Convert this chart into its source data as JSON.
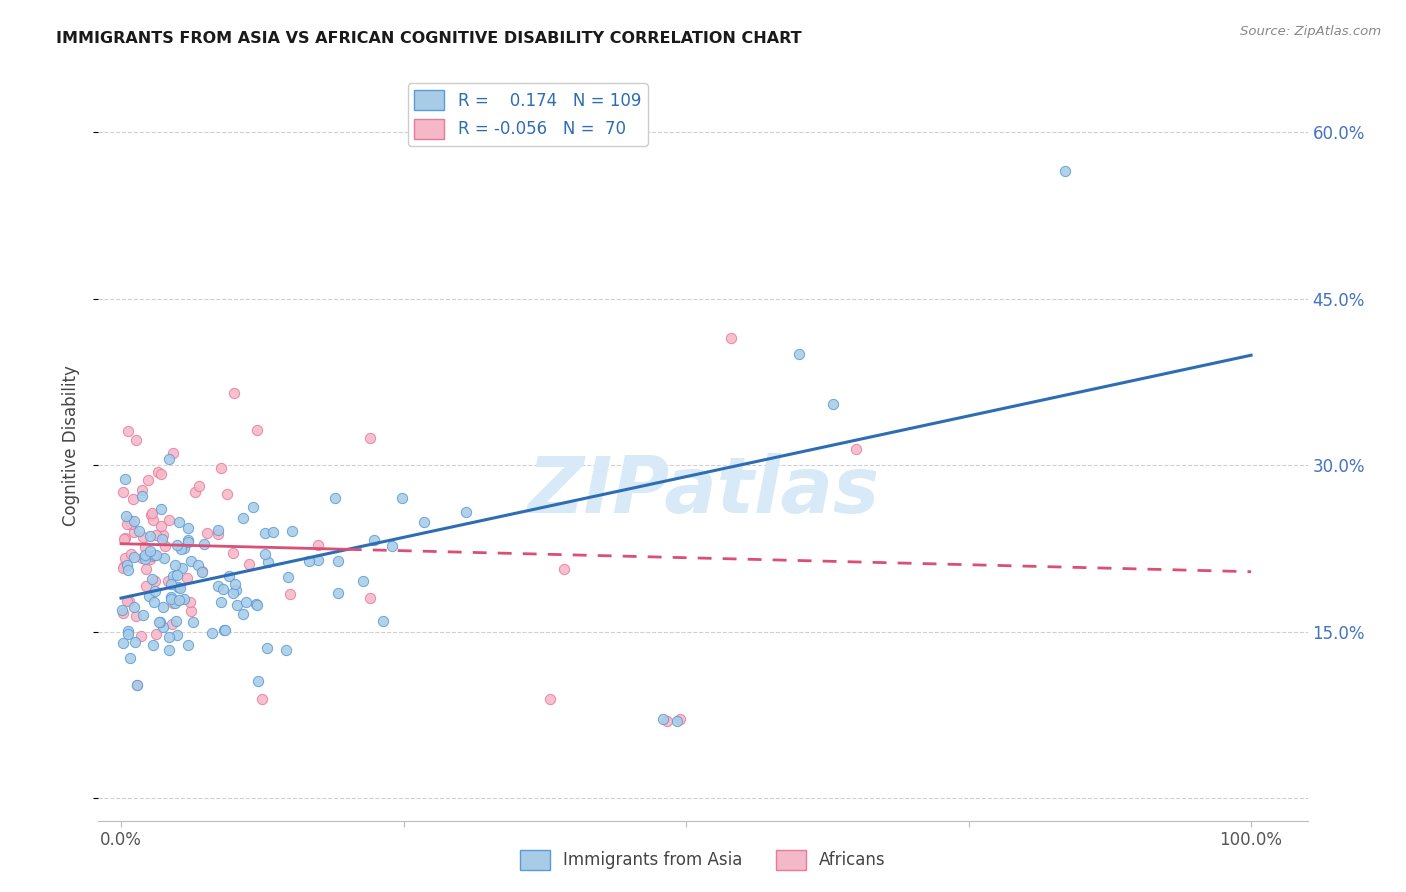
{
  "title": "IMMIGRANTS FROM ASIA VS AFRICAN COGNITIVE DISABILITY CORRELATION CHART",
  "source": "Source: ZipAtlas.com",
  "ylabel": "Cognitive Disability",
  "legend_blue_r": "0.174",
  "legend_blue_n": "109",
  "legend_pink_r": "-0.056",
  "legend_pink_n": "70",
  "blue_face_color": "#a8cce8",
  "blue_edge_color": "#5b9bd5",
  "pink_face_color": "#f5b8c8",
  "pink_edge_color": "#e87a9a",
  "blue_line_color": "#2e6db4",
  "pink_line_color": "#d94f75",
  "watermark": "ZIPatlas",
  "watermark_color": "#d8eaf8",
  "background_color": "#ffffff",
  "grid_color": "#d0d0d0",
  "ytick_color": "#4472c4",
  "title_color": "#1a1a1a",
  "source_color": "#888888",
  "label_color": "#444444",
  "yticks": [
    0.0,
    0.15,
    0.3,
    0.45,
    0.6
  ],
  "ytick_labels": [
    "",
    "15.0%",
    "30.0%",
    "45.0%",
    "60.0%"
  ],
  "xlim": [
    -0.02,
    1.05
  ],
  "ylim": [
    -0.02,
    0.655
  ]
}
